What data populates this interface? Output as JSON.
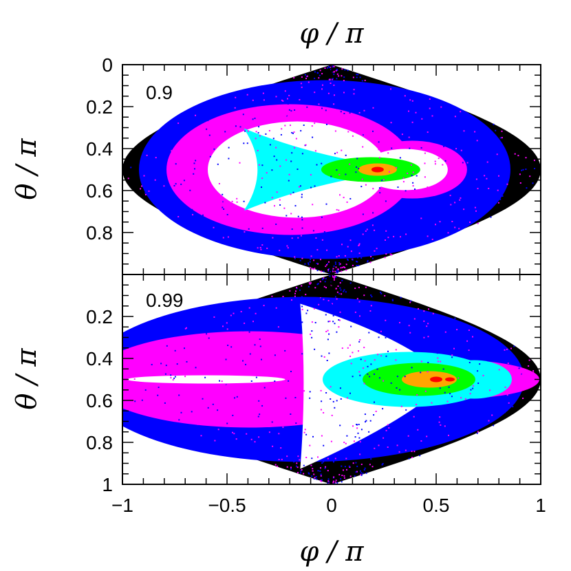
{
  "chart_data": [
    {
      "type": "heatmap",
      "panel_label": "0.9",
      "xlabel": "φ / π",
      "ylabel": "θ / π",
      "xlim": [
        -1,
        1
      ],
      "ylim": [
        0,
        1
      ],
      "y_inverted": true,
      "projection": "sinusoidal (equal-area) sky map",
      "x_ticks": [],
      "y_ticks": [
        "0",
        "0.2",
        "0.4",
        "0.6",
        "0.8"
      ],
      "color_scale_low_to_high": [
        "#000000",
        "#0000ff",
        "#ff00ff",
        "#ffffff",
        "#00ffff",
        "#00ff00",
        "#ffa500",
        "#ff0000"
      ],
      "peak": {
        "phi": 0.22,
        "theta": 0.5
      },
      "caustic_cusp_phi": -0.42
    },
    {
      "type": "heatmap",
      "panel_label": "0.99",
      "xlabel": "φ / π",
      "ylabel": "θ / π",
      "xlim": [
        -1,
        1
      ],
      "ylim": [
        0,
        1
      ],
      "y_inverted": true,
      "projection": "sinusoidal (equal-area) sky map",
      "x_ticks": [
        "−1",
        "−0.5",
        "0",
        "0.5",
        "1"
      ],
      "y_ticks": [
        "0.2",
        "0.4",
        "0.6",
        "0.8",
        "1"
      ],
      "color_scale_low_to_high": [
        "#000000",
        "#0000ff",
        "#ff00ff",
        "#ffffff",
        "#00ffff",
        "#00ff00",
        "#ffa500",
        "#ff0000"
      ],
      "peak": {
        "phi": 0.5,
        "theta": 0.5
      },
      "caustic_cusp_phi": -0.15
    }
  ],
  "labels": {
    "top_xlabel": "φ / π",
    "bottom_xlabel": "φ / π",
    "ylabel_top": "θ / π",
    "ylabel_bottom": "θ / π"
  }
}
